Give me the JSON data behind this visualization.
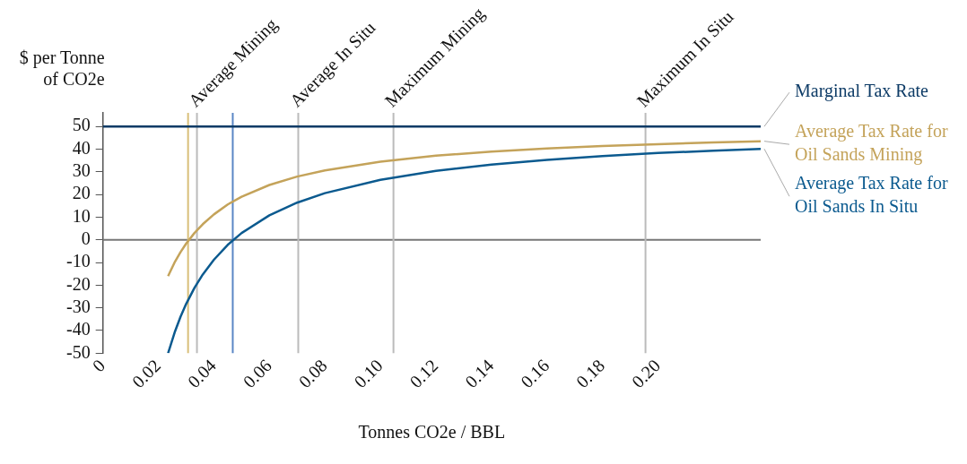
{
  "chart_data": {
    "type": "line",
    "xlabel": "Tonnes CO2e / BBL",
    "ylabel": "$ per Tonne of CO2e",
    "xlim": [
      0,
      0.237
    ],
    "xticks": [
      0,
      0.02,
      0.04,
      0.06,
      0.08,
      {
        "value": 0.1,
        "label": "0.10"
      },
      0.12,
      0.14,
      0.16,
      0.18,
      {
        "value": 0.2,
        "label": "0.20"
      }
    ],
    "ylim": [
      -50,
      56
    ],
    "yticks": [
      -50,
      -40,
      -30,
      -20,
      -10,
      0,
      10,
      20,
      30,
      40,
      50
    ],
    "grid": false,
    "marker": "none",
    "series": [
      {
        "name": "Marginal Tax Rate",
        "color": "#0d3b66",
        "x": [
          0,
          0.237
        ],
        "values": [
          50,
          50
        ]
      },
      {
        "name": "Average Tax Rate for Oil Sands Mining",
        "color": "#c4a35a",
        "x": [
          0.0235,
          0.026,
          0.028,
          0.03,
          0.033,
          0.036,
          0.04,
          0.045,
          0.05,
          0.06,
          0.07,
          0.08,
          0.1,
          0.12,
          0.14,
          0.16,
          0.18,
          0.2,
          0.22,
          0.237
        ],
        "values": [
          -16,
          -9.6,
          -5.4,
          -1.7,
          3,
          6.9,
          11.2,
          15.6,
          19,
          24.2,
          27.9,
          30.6,
          34.5,
          37.1,
          38.9,
          40.3,
          41.4,
          42.2,
          43,
          43.5
        ]
      },
      {
        "name": "Average Tax Rate for Oil Sands In Situ",
        "color": "#0b5a8f",
        "x": [
          0.0235,
          0.026,
          0.028,
          0.03,
          0.033,
          0.036,
          0.04,
          0.045,
          0.05,
          0.06,
          0.07,
          0.08,
          0.1,
          0.12,
          0.14,
          0.16,
          0.18,
          0.2,
          0.22,
          0.237
        ],
        "values": [
          -50,
          -40.4,
          -33.9,
          -28.3,
          -21.2,
          -15.3,
          -8.8,
          -2.2,
          3,
          10.8,
          16.4,
          20.6,
          26.5,
          30.4,
          33.2,
          35.3,
          36.9,
          38.3,
          39.3,
          40.1
        ]
      }
    ],
    "ref_lines": [
      {
        "axis": "y",
        "value": 0,
        "color": "#777777"
      },
      {
        "axis": "x",
        "value": 0.0307,
        "color": "#d9bf7a"
      },
      {
        "axis": "x",
        "value": 0.0468,
        "color": "#5a86c5"
      },
      {
        "axis": "x",
        "value": 0.0339,
        "label": "Average Mining",
        "color": "#bbbbbb"
      },
      {
        "axis": "x",
        "value": 0.0704,
        "label": "Average In Situ",
        "color": "#bbbbbb"
      },
      {
        "axis": "x",
        "value": 0.1047,
        "label": "Maximum Mining",
        "color": "#bbbbbb"
      },
      {
        "axis": "x",
        "value": 0.1955,
        "label": "Maximum In Situ",
        "color": "#bbbbbb"
      }
    ]
  }
}
